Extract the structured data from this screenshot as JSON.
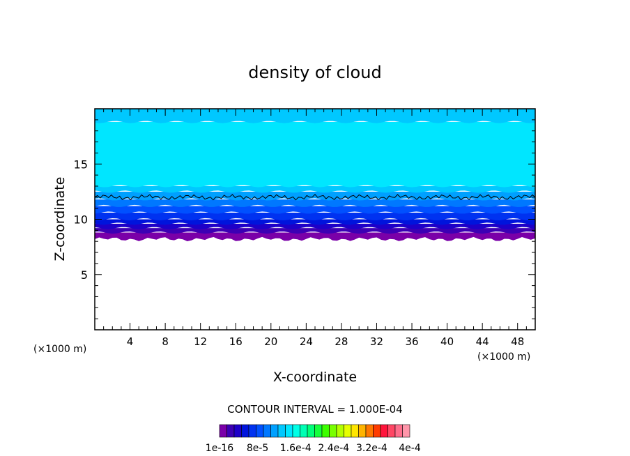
{
  "chart_data": {
    "type": "heatmap",
    "title": "density of cloud",
    "xlabel": "X-coordinate",
    "ylabel": "Z-coordinate",
    "x_unit": "(×1000 m)",
    "z_unit": "(×1000 m)",
    "xlim": [
      0,
      50
    ],
    "ylim": [
      0,
      20
    ],
    "x_ticks": [
      4,
      8,
      12,
      16,
      20,
      24,
      28,
      32,
      36,
      40,
      44,
      48
    ],
    "y_ticks": [
      5,
      10,
      15
    ],
    "contour_interval_label": "CONTOUR INTERVAL = 1.000E-04",
    "colorbar": {
      "colors": [
        "#7a00a8",
        "#3c00b4",
        "#1e00c8",
        "#0014dc",
        "#0032f0",
        "#0050ff",
        "#0078ff",
        "#00a0ff",
        "#00c8ff",
        "#00e6ff",
        "#00ffe6",
        "#00ffb4",
        "#00ff78",
        "#14ff3c",
        "#3cff00",
        "#78ff00",
        "#b4ff00",
        "#e6ff00",
        "#ffe600",
        "#ffb400",
        "#ff7800",
        "#ff3c00",
        "#ff143c",
        "#ff4664",
        "#ff6e8c",
        "#ff96aa"
      ],
      "tick_labels": [
        "1e-16",
        "8e-5",
        "1.6e-4",
        "2.4e-4",
        "3.2e-4",
        "4e-4"
      ]
    },
    "cloud_layers": [
      {
        "z_bottom": 8.2,
        "z_top": 8.8,
        "color": "#7a00a8"
      },
      {
        "z_bottom": 8.8,
        "z_top": 9.2,
        "color": "#3c00b4"
      },
      {
        "z_bottom": 9.2,
        "z_top": 9.6,
        "color": "#1e00c8"
      },
      {
        "z_bottom": 9.6,
        "z_top": 10.0,
        "color": "#0014dc"
      },
      {
        "z_bottom": 10.0,
        "z_top": 10.6,
        "color": "#0032f0"
      },
      {
        "z_bottom": 10.6,
        "z_top": 11.2,
        "color": "#0050ff"
      },
      {
        "z_bottom": 11.2,
        "z_top": 11.8,
        "color": "#0078ff"
      },
      {
        "z_bottom": 11.8,
        "z_top": 12.5,
        "color": "#00a0ff"
      },
      {
        "z_bottom": 12.5,
        "z_top": 13.0,
        "color": "#00c8ff"
      },
      {
        "z_bottom": 13.0,
        "z_top": 18.8,
        "color": "#00e6ff"
      },
      {
        "z_bottom": 18.8,
        "z_top": 20.0,
        "color": "#00c8ff"
      }
    ],
    "contour_line_z": 12.0,
    "contour_line_color": "#000000"
  }
}
